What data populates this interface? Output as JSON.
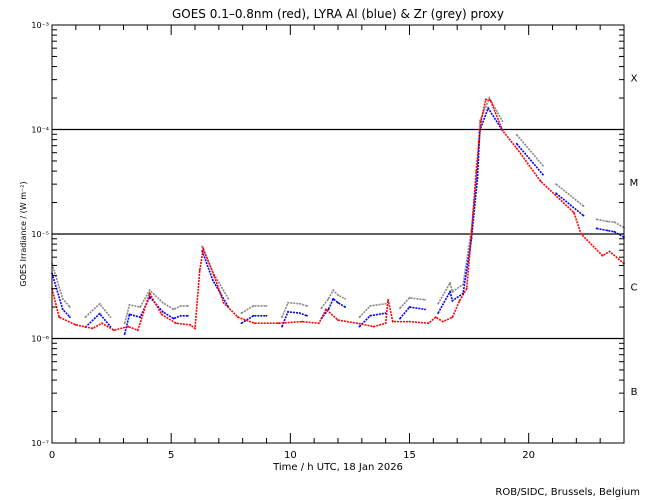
{
  "chart_data": {
    "type": "line",
    "title": "GOES 0.1–0.8nm (red), LYRA Al (blue) & Zr (grey) proxy",
    "xlabel": "Time / h UTC, 18 Jan 2026",
    "ylabel": "GOES Irradiance / (W m⁻²)",
    "xlim": [
      0,
      24
    ],
    "ylim": [
      1e-07,
      0.001
    ],
    "yscale": "log",
    "x_ticks": [
      0,
      5,
      10,
      15,
      20
    ],
    "x_tick_labels": [
      "0",
      "5",
      "10",
      "15",
      "20"
    ],
    "y_ticks": [
      1e-07,
      1e-06,
      1e-05,
      0.0001,
      0.001
    ],
    "y_tick_labels": [
      "10⁻⁷",
      "10⁻⁶",
      "10⁻⁵",
      "10⁻⁴",
      "10⁻³"
    ],
    "class_labels": [
      {
        "label": "B",
        "value": 3.16e-07
      },
      {
        "label": "C",
        "value": 3.16e-06
      },
      {
        "label": "M",
        "value": 3.16e-05
      },
      {
        "label": "X",
        "value": 0.000316
      }
    ],
    "threshold_lines": [
      1e-06,
      1e-05,
      0.0001
    ],
    "series": [
      {
        "name": "GOES 0.1-0.8nm",
        "color": "#ff0000",
        "segments": [
          [
            [
              0,
              3e-06
            ],
            [
              0.3,
              1.6e-06
            ],
            [
              1.0,
              1.35e-06
            ],
            [
              1.7,
              1.25e-06
            ],
            [
              2.1,
              1.4e-06
            ],
            [
              2.6,
              1.2e-06
            ],
            [
              3.2,
              1.3e-06
            ],
            [
              3.6,
              1.2e-06
            ],
            [
              4.1,
              2.7e-06
            ],
            [
              4.6,
              1.7e-06
            ],
            [
              5.2,
              1.4e-06
            ],
            [
              5.8,
              1.35e-06
            ],
            [
              6.0,
              1.25e-06
            ],
            [
              6.2,
              4.5e-06
            ],
            [
              6.35,
              7.2e-06
            ],
            [
              6.8,
              4e-06
            ],
            [
              7.2,
              2.2e-06
            ],
            [
              7.8,
              1.6e-06
            ],
            [
              8.5,
              1.4e-06
            ],
            [
              9.5,
              1.4e-06
            ],
            [
              10.5,
              1.45e-06
            ],
            [
              11.2,
              1.4e-06
            ],
            [
              11.5,
              1.9e-06
            ],
            [
              12.0,
              1.5e-06
            ],
            [
              12.8,
              1.4e-06
            ],
            [
              13.5,
              1.3e-06
            ],
            [
              14.0,
              1.4e-06
            ],
            [
              14.1,
              2.35e-06
            ],
            [
              14.3,
              1.45e-06
            ],
            [
              15.0,
              1.45e-06
            ],
            [
              15.8,
              1.4e-06
            ],
            [
              16.1,
              1.6e-06
            ],
            [
              16.4,
              1.45e-06
            ],
            [
              16.8,
              1.6e-06
            ],
            [
              17.1,
              2.3e-06
            ],
            [
              17.4,
              3e-06
            ],
            [
              17.6,
              1e-05
            ],
            [
              17.8,
              4e-05
            ],
            [
              18.0,
              0.00012
            ],
            [
              18.2,
              0.000194
            ],
            [
              18.4,
              0.00019
            ],
            [
              18.9,
              9.8e-05
            ],
            [
              19.5,
              6.6e-05
            ],
            [
              20.5,
              3.2e-05
            ],
            [
              21.9,
              1.6e-05
            ],
            [
              22.2,
              1e-05
            ],
            [
              23.1,
              6.2e-06
            ],
            [
              23.4,
              6.8e-06
            ],
            [
              24.0,
              5.2e-06
            ]
          ]
        ]
      },
      {
        "name": "LYRA Al proxy",
        "color": "#0000ff",
        "segments": [
          [
            [
              0,
              4.2e-06
            ],
            [
              0.45,
              1.9e-06
            ],
            [
              0.75,
              1.6e-06
            ]
          ],
          [
            [
              1.4,
              1.28e-06
            ],
            [
              2.0,
              1.73e-06
            ],
            [
              2.45,
              1.3e-06
            ]
          ],
          [
            [
              3.05,
              1.1e-06
            ],
            [
              3.25,
              1.7e-06
            ],
            [
              3.7,
              1.6e-06
            ],
            [
              4.1,
              2.5e-06
            ],
            [
              4.65,
              1.8e-06
            ],
            [
              5.1,
              1.55e-06
            ],
            [
              5.4,
              1.65e-06
            ],
            [
              5.7,
              1.65e-06
            ]
          ],
          [
            [
              6.3,
              6.9e-06
            ],
            [
              6.75,
              3.6e-06
            ],
            [
              7.4,
              2e-06
            ]
          ],
          [
            [
              7.95,
              1.4e-06
            ],
            [
              8.45,
              1.65e-06
            ],
            [
              9.0,
              1.65e-06
            ]
          ],
          [
            [
              9.65,
              1.3e-06
            ],
            [
              9.9,
              1.8e-06
            ],
            [
              10.4,
              1.75e-06
            ],
            [
              10.7,
              1.65e-06
            ]
          ],
          [
            [
              11.3,
              1.55e-06
            ],
            [
              11.6,
              1.9e-06
            ],
            [
              11.8,
              2.4e-06
            ],
            [
              12.0,
              2.2e-06
            ],
            [
              12.3,
              2e-06
            ]
          ],
          [
            [
              12.9,
              1.3e-06
            ],
            [
              13.35,
              1.65e-06
            ],
            [
              14.0,
              1.75e-06
            ]
          ],
          [
            [
              14.6,
              1.55e-06
            ],
            [
              15.0,
              2e-06
            ],
            [
              15.65,
              1.9e-06
            ]
          ],
          [
            [
              16.2,
              1.75e-06
            ],
            [
              16.7,
              2.8e-06
            ],
            [
              16.8,
              2.3e-06
            ],
            [
              17.25,
              2.7e-06
            ],
            [
              17.6,
              9e-06
            ],
            [
              17.85,
              3.4e-05
            ],
            [
              17.95,
              9.8e-05
            ],
            [
              18.3,
              0.00016
            ],
            [
              18.9,
              9.8e-05
            ]
          ],
          [
            [
              19.5,
              7.3e-05
            ],
            [
              20.6,
              3.7e-05
            ]
          ],
          [
            [
              21.15,
              2.45e-05
            ],
            [
              22.3,
              1.5e-05
            ]
          ],
          [
            [
              22.85,
              1.13e-05
            ],
            [
              23.3,
              1.08e-05
            ],
            [
              23.6,
              1.05e-05
            ],
            [
              24.0,
              9.3e-06
            ]
          ]
        ]
      },
      {
        "name": "LYRA Zr proxy",
        "color": "#888888",
        "segments": [
          [
            [
              0,
              5.2e-06
            ],
            [
              0.45,
              2.4e-06
            ],
            [
              0.75,
              2e-06
            ]
          ],
          [
            [
              1.4,
              1.6e-06
            ],
            [
              2.0,
              2.15e-06
            ],
            [
              2.45,
              1.6e-06
            ]
          ],
          [
            [
              3.05,
              1.4e-06
            ],
            [
              3.25,
              2.1e-06
            ],
            [
              3.7,
              2e-06
            ],
            [
              4.1,
              2.9e-06
            ],
            [
              4.65,
              2.2e-06
            ],
            [
              5.1,
              1.9e-06
            ],
            [
              5.4,
              2.05e-06
            ],
            [
              5.7,
              2.05e-06
            ]
          ],
          [
            [
              6.3,
              7.6e-06
            ],
            [
              6.75,
              4.3e-06
            ],
            [
              7.4,
              2.4e-06
            ]
          ],
          [
            [
              7.95,
              1.75e-06
            ],
            [
              8.45,
              2.05e-06
            ],
            [
              9.0,
              2.05e-06
            ]
          ],
          [
            [
              9.65,
              1.6e-06
            ],
            [
              9.9,
              2.2e-06
            ],
            [
              10.4,
              2.15e-06
            ],
            [
              10.7,
              2.05e-06
            ]
          ],
          [
            [
              11.3,
              1.95e-06
            ],
            [
              11.6,
              2.4e-06
            ],
            [
              11.8,
              2.9e-06
            ],
            [
              12.0,
              2.6e-06
            ],
            [
              12.3,
              2.4e-06
            ]
          ],
          [
            [
              12.9,
              1.6e-06
            ],
            [
              13.35,
              2.05e-06
            ],
            [
              14.0,
              2.15e-06
            ]
          ],
          [
            [
              14.6,
              1.95e-06
            ],
            [
              15.0,
              2.45e-06
            ],
            [
              15.65,
              2.35e-06
            ]
          ],
          [
            [
              16.2,
              2.15e-06
            ],
            [
              16.7,
              3.4e-06
            ],
            [
              16.8,
              2.8e-06
            ],
            [
              17.25,
              3.3e-06
            ],
            [
              17.6,
              1.1e-05
            ],
            [
              17.85,
              4.2e-05
            ],
            [
              17.95,
              0.00012
            ],
            [
              18.35,
              0.0002
            ],
            [
              18.9,
              0.00012
            ]
          ],
          [
            [
              19.5,
              8.9e-05
            ],
            [
              20.6,
              4.5e-05
            ]
          ],
          [
            [
              21.15,
              3e-05
            ],
            [
              22.3,
              1.85e-05
            ]
          ],
          [
            [
              22.85,
              1.38e-05
            ],
            [
              23.3,
              1.32e-05
            ],
            [
              23.6,
              1.3e-05
            ],
            [
              24.0,
              1.15e-05
            ]
          ]
        ]
      }
    ]
  },
  "footer": {
    "credit": "ROB/SIDC, Brussels, Belgium"
  }
}
